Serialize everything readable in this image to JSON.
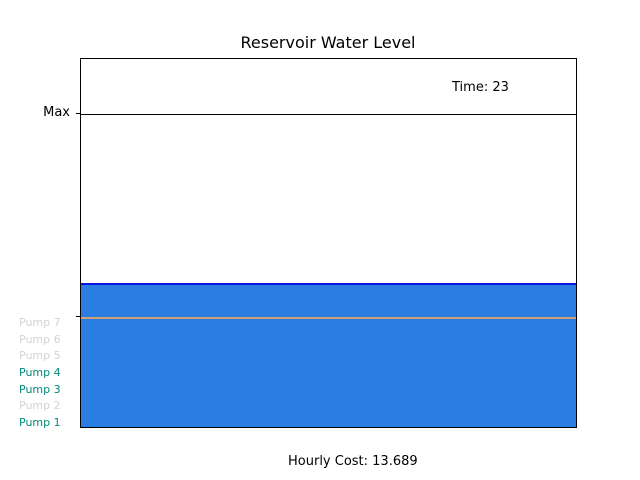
{
  "title": "Reservoir Water Level",
  "time_label": "Time: 23",
  "y_axis": {
    "max_label": "Max",
    "min_label": ""
  },
  "level": {
    "water_fraction": 0.385,
    "max_fraction": 0.85,
    "min_fraction": 0.3
  },
  "pumps": [
    {
      "label": "Pump 1",
      "active": true
    },
    {
      "label": "Pump 2",
      "active": false
    },
    {
      "label": "Pump 3",
      "active": true
    },
    {
      "label": "Pump 4",
      "active": true
    },
    {
      "label": "Pump 5",
      "active": false
    },
    {
      "label": "Pump 6",
      "active": false
    },
    {
      "label": "Pump 7",
      "active": false
    }
  ],
  "colors": {
    "pump_active": "#00897b",
    "pump_inactive": "#d3d3d3",
    "water": "#2b7de1",
    "water_edge": "#0a14e0",
    "min_line": "#d2a072"
  },
  "hourly_cost": "Hourly Cost: 13.689"
}
